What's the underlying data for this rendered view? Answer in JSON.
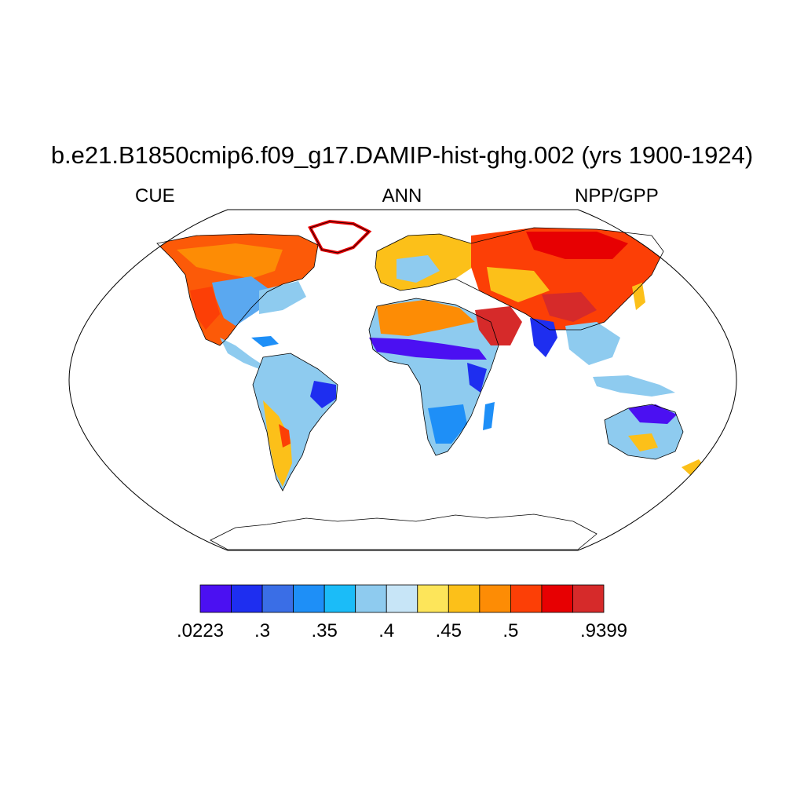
{
  "title": "b.e21.B1850cmip6.f09_g17.DAMIP-hist-ghg.002 (yrs 1900-1924)",
  "subtitle_left": "CUE",
  "subtitle_center": "ANN",
  "subtitle_right": "NPP/GPP",
  "projection": "Robinson",
  "colorbar": {
    "colors": [
      "#4b10f2",
      "#1e2ef0",
      "#3a6ee6",
      "#1e8ff7",
      "#1bbcf8",
      "#8ecbef",
      "#c7e5f7",
      "#fde55a",
      "#fcc019",
      "#fd8c05",
      "#fc3f06",
      "#e70002",
      "#d62a2a"
    ],
    "labels": [
      {
        "text": ".0223",
        "index": 0
      },
      {
        "text": ".3",
        "index": 2
      },
      {
        "text": ".35",
        "index": 4
      },
      {
        "text": ".4",
        "index": 6
      },
      {
        "text": ".45",
        "index": 8
      },
      {
        "text": ".5",
        "index": 10
      },
      {
        "text": ".9399",
        "index": 13
      }
    ]
  }
}
